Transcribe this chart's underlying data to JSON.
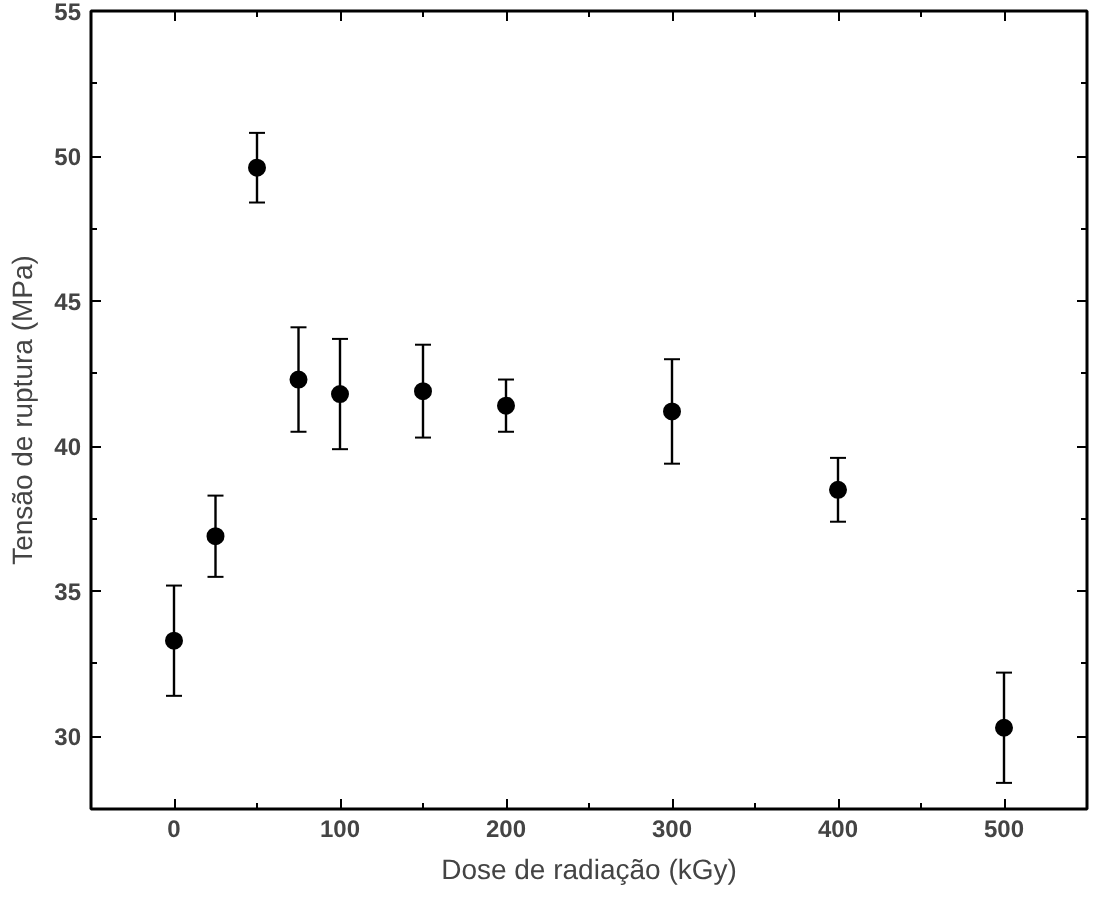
{
  "chart_data": {
    "type": "scatter",
    "xlabel": "Dose de radiação (kGy)",
    "ylabel": "Tensão de ruptura (MPa)",
    "x": [
      0,
      25,
      50,
      75,
      100,
      150,
      200,
      300,
      400,
      500
    ],
    "series": [
      {
        "color": "#000000",
        "values": [
          33.3,
          36.9,
          49.6,
          42.3,
          41.8,
          41.9,
          41.4,
          41.2,
          38.5,
          30.3
        ],
        "errors": [
          1.9,
          1.4,
          1.2,
          1.8,
          1.9,
          1.6,
          0.9,
          1.8,
          1.1,
          1.9
        ]
      }
    ],
    "xlim": [
      -50,
      550
    ],
    "ylim": [
      27.5,
      55
    ],
    "xticks": [
      0,
      100,
      200,
      300,
      400,
      500
    ],
    "yticks": [
      30,
      35,
      40,
      45,
      50,
      55
    ],
    "marker": "circle"
  }
}
